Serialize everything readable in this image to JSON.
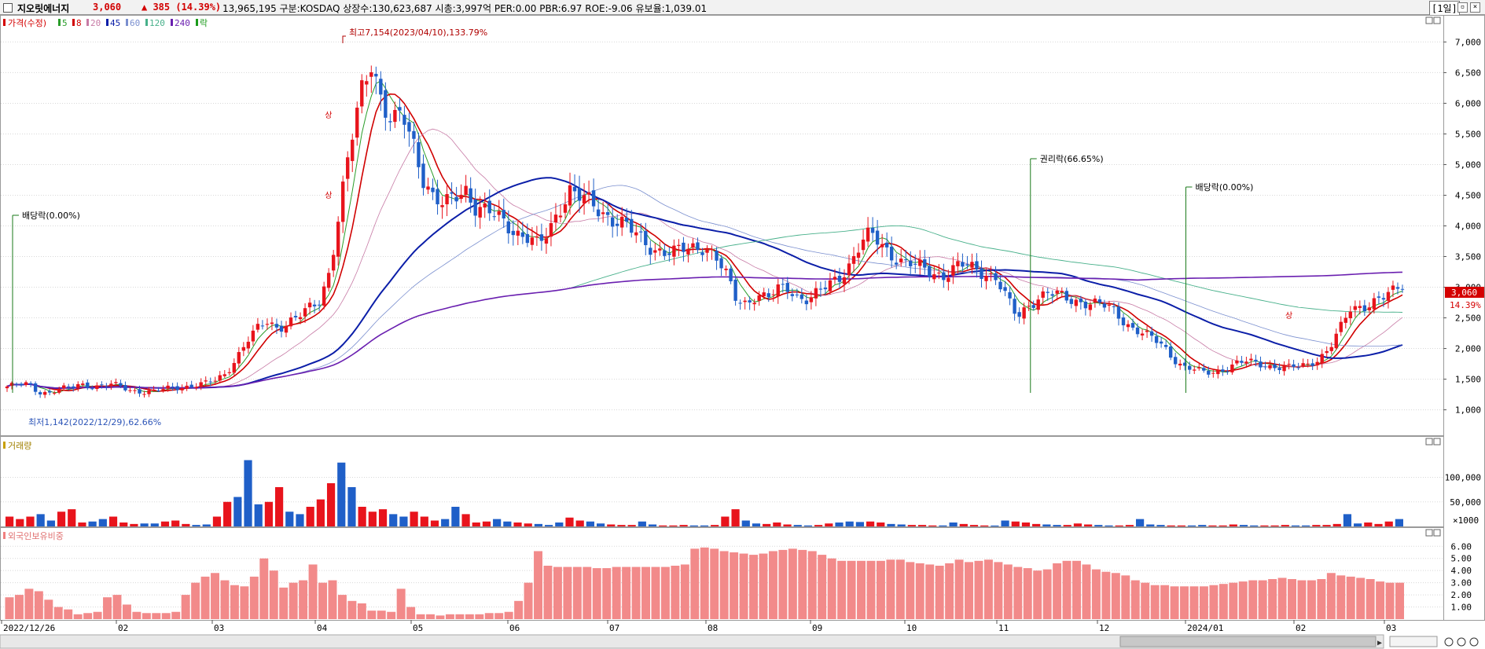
{
  "header": {
    "stock_name": "지오릿에너지",
    "price": "3,060",
    "change": "▲ 385 (14.39%)",
    "stats": "13,965,195  구분:KOSDAQ 상장수:130,623,687 시총:3,997억 PER:0.00 PBR:6.97 ROE:-9.06 유보율:1,039.01",
    "period": "[1일]"
  },
  "legend": {
    "price_label": "가격(수정)",
    "ma": [
      {
        "label": "5",
        "color": "#2a9d2a"
      },
      {
        "label": "8",
        "color": "#d00000"
      },
      {
        "label": "20",
        "color": "#c77aa5"
      },
      {
        "label": "45",
        "color": "#0b1ea8"
      },
      {
        "label": "60",
        "color": "#7a8fcf"
      },
      {
        "label": "120",
        "color": "#47b08a"
      },
      {
        "label": "240",
        "color": "#6a1fb0"
      }
    ],
    "ex_label": "락"
  },
  "panels": {
    "volume_label": "거래량",
    "foreign_label": "외국인보유비중"
  },
  "chart_data": {
    "type": "candlestick",
    "x_labels": [
      "2022/12/26",
      "02",
      "03",
      "04",
      "05",
      "06",
      "07",
      "08",
      "09",
      "10",
      "11",
      "12",
      "2024/01",
      "02",
      "03"
    ],
    "price_axis": {
      "ticks": [
        "1,000",
        "1,500",
        "2,000",
        "2,500",
        "3,000",
        "3,500",
        "4,000",
        "4,500",
        "5,000",
        "5,500",
        "6,000",
        "6,500",
        "7,000"
      ],
      "min": 700,
      "max": 7300
    },
    "volume_axis": {
      "ticks": [
        "100,000",
        "50,000"
      ],
      "unit": "×1000",
      "max": 160000
    },
    "foreign_axis": {
      "ticks": [
        "6.00",
        "5.00",
        "4.00",
        "3.00",
        "2.00",
        "1.00"
      ],
      "max": 6.6
    },
    "close_path": [
      1380,
      1400,
      1420,
      1300,
      1280,
      1330,
      1350,
      1420,
      1400,
      1380,
      1410,
      1370,
      1320,
      1300,
      1290,
      1330,
      1370,
      1380,
      1400,
      1420,
      1480,
      1600,
      1850,
      2100,
      2300,
      2450,
      2350,
      2420,
      2500,
      2650,
      2800,
      3300,
      4300,
      5300,
      6200,
      6800,
      6000,
      5600,
      5800,
      5400,
      4800,
      4400,
      4300,
      4500,
      4650,
      4300,
      4200,
      4150,
      4050,
      3900,
      3800,
      3650,
      3900,
      4300,
      4600,
      4450,
      4350,
      4250,
      4150,
      4050,
      3900,
      3750,
      3650,
      3600,
      3550,
      3600,
      3650,
      3700,
      3500,
      3200,
      2800,
      2750,
      2900,
      2800,
      2950,
      3000,
      2850,
      2800,
      2900,
      3050,
      3200,
      3400,
      3700,
      3850,
      3700,
      3550,
      3400,
      3350,
      3300,
      3250,
      3200,
      3300,
      3350,
      3300,
      3250,
      3150,
      2800,
      2500,
      2700,
      2850,
      2900,
      2850,
      2800,
      2780,
      2750,
      2700,
      2650,
      2500,
      2350,
      2250,
      2150,
      2050,
      1850,
      1700,
      1650,
      1600,
      1620,
      1680,
      1750,
      1780,
      1760,
      1730,
      1700,
      1680,
      1700,
      1750,
      1850,
      2000,
      2300,
      2650,
      2700,
      2750,
      2800,
      2900,
      3060
    ],
    "high_label": "최고7,154(2023/04/10),133.79%",
    "low_label": "최저1,142(2022/12/29),62.66%",
    "last_price": "3,060",
    "last_pct": "14.39%",
    "events": [
      {
        "label": "배당락(0.00%)",
        "at": 0.0
      },
      {
        "label": "권리락(66.65%)",
        "at": 0.727
      },
      {
        "label": "배당락(0.00%)",
        "at": 0.838
      }
    ],
    "limit_up_marker": "상",
    "volume": [
      20000,
      15000,
      20000,
      25000,
      12000,
      30000,
      35000,
      8000,
      10000,
      15000,
      20000,
      8000,
      5000,
      6000,
      6000,
      10000,
      12000,
      5000,
      3000,
      4000,
      20000,
      50000,
      60000,
      135000,
      45000,
      50000,
      80000,
      30000,
      25000,
      40000,
      55000,
      88000,
      130000,
      80000,
      40000,
      30000,
      35000,
      25000,
      20000,
      30000,
      20000,
      12000,
      15000,
      40000,
      25000,
      8000,
      10000,
      15000,
      10000,
      8000,
      6000,
      5000,
      3000,
      8000,
      18000,
      12000,
      10000,
      6000,
      4000,
      3000,
      3000,
      10000,
      4000,
      2000,
      2000,
      3000,
      2000,
      2000,
      3000,
      20000,
      35000,
      12000,
      6000,
      5000,
      8000,
      4000,
      3000,
      2000,
      3000,
      6000,
      8000,
      10000,
      9000,
      10000,
      8000,
      5000,
      4000,
      3000,
      3000,
      2000,
      2000,
      8000,
      5000,
      3000,
      2000,
      1800,
      12000,
      10000,
      8000,
      5000,
      4000,
      3000,
      3000,
      6000,
      4000,
      3000,
      2000,
      2000,
      3000,
      15000,
      4000,
      3000,
      2000,
      2000,
      2000,
      3000,
      2000,
      2000,
      4000,
      3000,
      2000,
      2000,
      2000,
      3000,
      2000,
      2000,
      3000,
      3000,
      5000,
      25000,
      6000,
      8000,
      5000,
      10000,
      15000
    ],
    "foreign": [
      1.8,
      2.0,
      2.5,
      2.3,
      1.6,
      1.0,
      0.8,
      0.4,
      0.5,
      0.6,
      1.8,
      2.0,
      1.2,
      0.6,
      0.5,
      0.5,
      0.5,
      0.6,
      2.0,
      3.0,
      3.5,
      3.8,
      3.2,
      2.8,
      2.7,
      3.5,
      5.0,
      4.0,
      2.6,
      3.0,
      3.2,
      4.5,
      3.0,
      3.2,
      2.0,
      1.5,
      1.3,
      0.7,
      0.7,
      0.6,
      2.5,
      1.0,
      0.4,
      0.4,
      0.3,
      0.4,
      0.4,
      0.4,
      0.4,
      0.5,
      0.5,
      0.6,
      1.5,
      3.0,
      5.6,
      4.4,
      4.3,
      4.3,
      4.3,
      4.3,
      4.2,
      4.2,
      4.3,
      4.3,
      4.3,
      4.3,
      4.3,
      4.3,
      4.4,
      4.5,
      5.8,
      5.9,
      5.8,
      5.6,
      5.5,
      5.4,
      5.3,
      5.4,
      5.6,
      5.7,
      5.8,
      5.7,
      5.6,
      5.3,
      5.0,
      4.8,
      4.8,
      4.8,
      4.8,
      4.8,
      4.9,
      4.9,
      4.7,
      4.6,
      4.5,
      4.4,
      4.6,
      4.9,
      4.7,
      4.8,
      4.9,
      4.7,
      4.5,
      4.3,
      4.2,
      4.0,
      4.1,
      4.6,
      4.8,
      4.8,
      4.5,
      4.1,
      3.9,
      3.8,
      3.6,
      3.2,
      3.0,
      2.8,
      2.8,
      2.7,
      2.7,
      2.7,
      2.7,
      2.8,
      2.9,
      3.0,
      3.1,
      3.2,
      3.2,
      3.3,
      3.4,
      3.3,
      3.2,
      3.2,
      3.3,
      3.8,
      3.6,
      3.5,
      3.4,
      3.3,
      3.1,
      3.0,
      3.0
    ]
  }
}
